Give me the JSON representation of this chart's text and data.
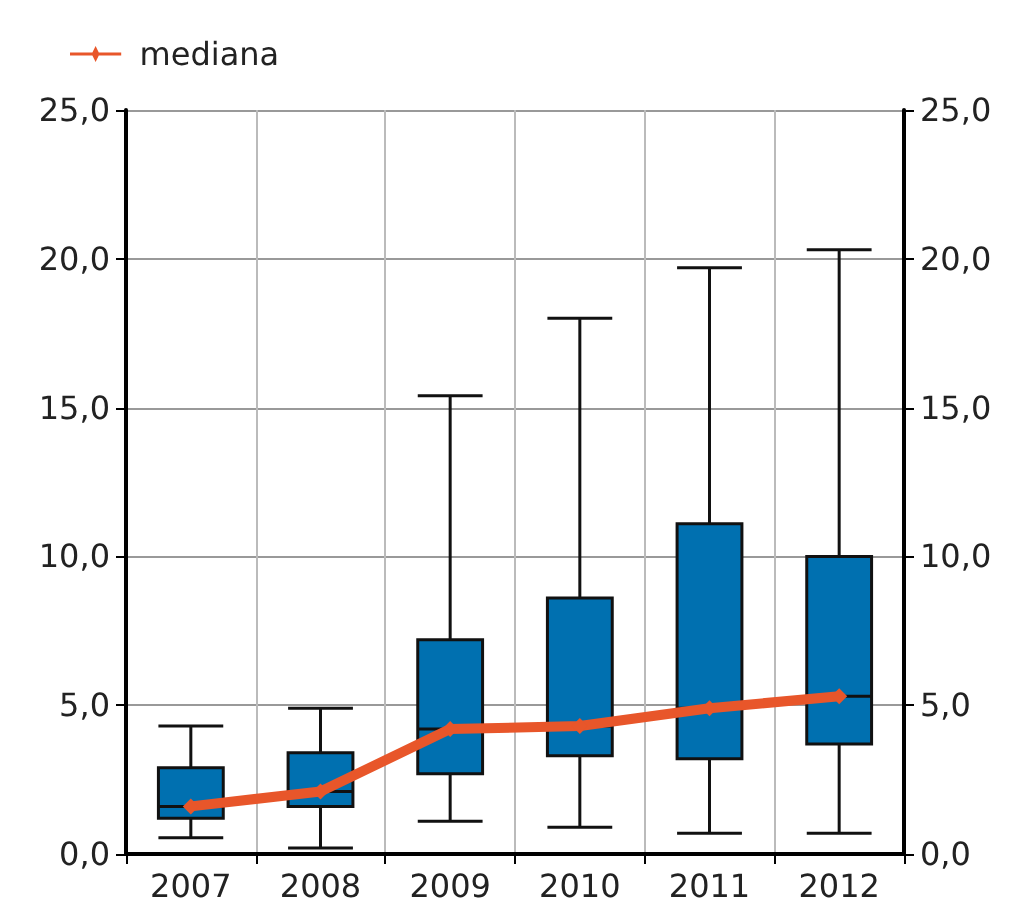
{
  "chart_data": {
    "type": "box",
    "categories": [
      "2007",
      "2008",
      "2009",
      "2010",
      "2011",
      "2012"
    ],
    "boxes": [
      {
        "low": 0.55,
        "q1": 1.2,
        "median": 1.6,
        "q3": 2.9,
        "high": 4.3
      },
      {
        "low": 0.2,
        "q1": 1.6,
        "median": 2.1,
        "q3": 3.4,
        "high": 4.9
      },
      {
        "low": 1.1,
        "q1": 2.7,
        "median": 4.2,
        "q3": 7.2,
        "high": 15.4
      },
      {
        "low": 0.9,
        "q1": 3.3,
        "median": 4.3,
        "q3": 8.6,
        "high": 18.0
      },
      {
        "low": 0.7,
        "q1": 3.2,
        "median": 4.9,
        "q3": 11.1,
        "high": 19.7
      },
      {
        "low": 0.7,
        "q1": 3.7,
        "median": 5.3,
        "q3": 10.0,
        "high": 20.3
      }
    ],
    "color": "#0070b0",
    "series": [
      {
        "type": "line",
        "name": "mediana",
        "color": "#e8562a",
        "marker": "diamond",
        "values": [
          1.6,
          2.1,
          4.2,
          4.3,
          4.9,
          5.3
        ]
      }
    ],
    "ylim": [
      0,
      25
    ],
    "yticks": [
      {
        "value": 0,
        "label": "0,0"
      },
      {
        "value": 5,
        "label": "5,0"
      },
      {
        "value": 10,
        "label": "10,0"
      },
      {
        "value": 15,
        "label": "15,0"
      },
      {
        "value": 20,
        "label": "20,0"
      },
      {
        "value": 25,
        "label": "25,0"
      }
    ],
    "y2lim": [
      0,
      25
    ],
    "y2ticks": [
      {
        "value": 0,
        "label": "0,0"
      },
      {
        "value": 5,
        "label": "5,0"
      },
      {
        "value": 10,
        "label": "10,0"
      },
      {
        "value": 15,
        "label": "15,0"
      },
      {
        "value": 20,
        "label": "20,0"
      },
      {
        "value": 25,
        "label": "25,0"
      }
    ],
    "grid": true,
    "legend": "top left"
  }
}
